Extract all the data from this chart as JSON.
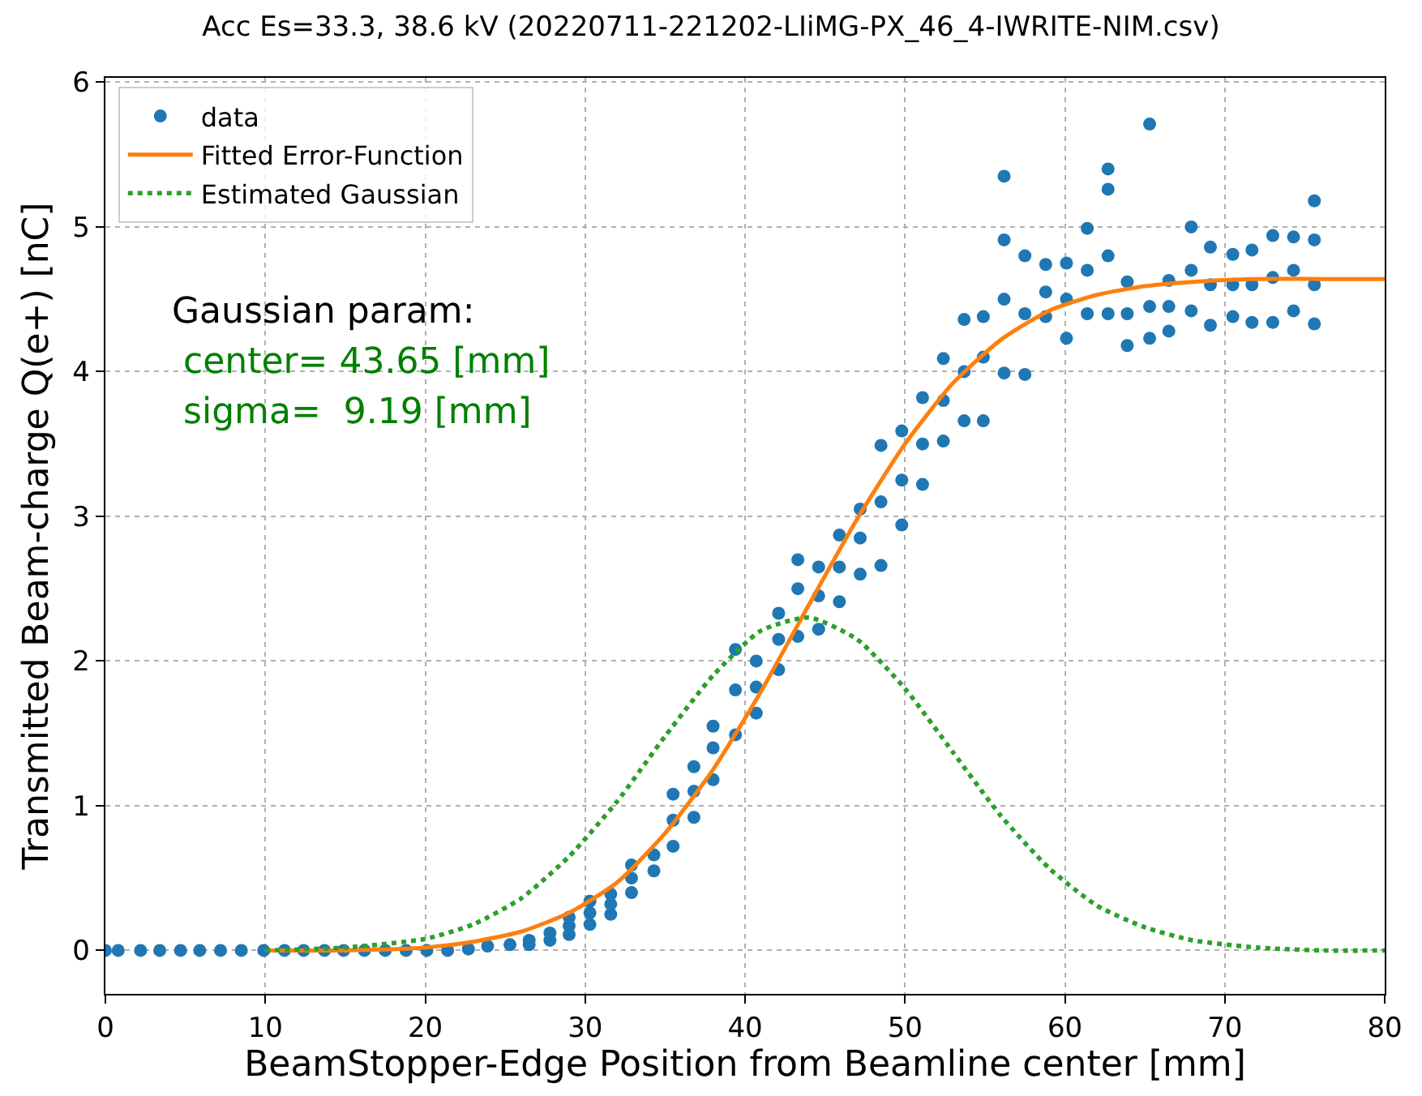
{
  "chart_data": {
    "type": "scatter",
    "title": "Acc Es=33.3, 38.6 kV (20220711-221202-LIiMG-PX_46_4-IWRITE-NIM.csv)",
    "xlabel": "BeamStopper-Edge Position from Beamline center [mm]",
    "ylabel": "Transmitted Beam-charge Q(e+) [nC]",
    "xlim": [
      0,
      80
    ],
    "ylim": [
      -0.3,
      6.03
    ],
    "xticks": [
      0,
      10,
      20,
      30,
      40,
      50,
      60,
      70,
      80
    ],
    "yticks": [
      0,
      1,
      2,
      3,
      4,
      5,
      6
    ],
    "grid": true,
    "legend": "top left",
    "annotations": [
      "Gaussian param:",
      " center= 43.65 [mm]",
      " sigma=  9.19 [mm]"
    ],
    "series": [
      {
        "name": "data",
        "marker": "circle",
        "color": "#1f77b4",
        "x": [
          0,
          0.8,
          2.2,
          3.4,
          4.7,
          5.9,
          7.2,
          8.5,
          9.9,
          11.2,
          12.4,
          13.7,
          14.9,
          16.2,
          17.5,
          18.8,
          20.1,
          21.4,
          22.7,
          23.9,
          25.3,
          26.5,
          26.5,
          27.8,
          27.8,
          29.0,
          29.0,
          29.0,
          30.3,
          30.3,
          30.3,
          31.6,
          31.6,
          31.6,
          32.9,
          32.9,
          32.9,
          34.3,
          34.3,
          35.5,
          35.5,
          35.5,
          36.8,
          36.8,
          36.8,
          38.0,
          38.0,
          38.0,
          39.4,
          39.4,
          39.4,
          40.7,
          40.7,
          40.7,
          42.1,
          42.1,
          42.1,
          43.3,
          43.3,
          43.3,
          44.6,
          44.6,
          44.6,
          45.9,
          45.9,
          45.9,
          47.2,
          47.2,
          47.2,
          48.5,
          48.5,
          48.5,
          49.8,
          49.8,
          49.8,
          51.1,
          51.1,
          51.1,
          52.4,
          52.4,
          52.4,
          53.7,
          53.7,
          53.7,
          54.9,
          54.9,
          54.9,
          56.2,
          56.2,
          56.2,
          56.2,
          57.5,
          57.5,
          57.5,
          58.8,
          58.8,
          58.8,
          60.1,
          60.1,
          60.1,
          61.4,
          61.4,
          61.4,
          62.7,
          62.7,
          62.7,
          62.7,
          63.9,
          63.9,
          63.9,
          65.3,
          65.3,
          65.3,
          66.5,
          66.5,
          66.5,
          67.9,
          67.9,
          67.9,
          69.1,
          69.1,
          69.1,
          70.5,
          70.5,
          70.5,
          71.7,
          71.7,
          71.7,
          73.0,
          73.0,
          73.0,
          74.3,
          74.3,
          74.3,
          75.6,
          75.6,
          75.6,
          75.6
        ],
        "values": [
          0,
          0,
          0,
          0,
          0,
          0,
          0,
          0,
          0,
          0,
          0,
          0,
          0,
          0,
          0,
          0,
          0,
          0,
          0.01,
          0.03,
          0.04,
          0.04,
          0.07,
          0.07,
          0.12,
          0.11,
          0.17,
          0.23,
          0.18,
          0.26,
          0.34,
          0.25,
          0.32,
          0.39,
          0.4,
          0.5,
          0.59,
          0.55,
          0.66,
          0.72,
          0.9,
          1.08,
          0.92,
          1.1,
          1.27,
          1.18,
          1.4,
          1.55,
          1.49,
          1.8,
          2.08,
          1.64,
          1.82,
          2.0,
          1.94,
          2.15,
          2.33,
          2.17,
          2.5,
          2.7,
          2.22,
          2.45,
          2.65,
          2.41,
          2.65,
          2.87,
          2.6,
          2.85,
          3.05,
          2.66,
          3.1,
          3.49,
          2.94,
          3.25,
          3.59,
          3.22,
          3.5,
          3.82,
          3.52,
          3.8,
          4.09,
          3.66,
          4.0,
          4.36,
          3.66,
          4.1,
          4.38,
          3.99,
          4.5,
          4.91,
          5.35,
          3.98,
          4.4,
          4.8,
          4.38,
          4.55,
          4.74,
          4.23,
          4.5,
          4.75,
          4.4,
          4.7,
          4.99,
          4.4,
          4.8,
          5.26,
          5.4,
          4.18,
          4.4,
          4.62,
          4.23,
          4.45,
          5.71,
          4.28,
          4.45,
          4.63,
          4.42,
          4.7,
          5.0,
          4.32,
          4.6,
          4.86,
          4.38,
          4.6,
          4.81,
          4.34,
          4.6,
          4.84,
          4.34,
          4.65,
          4.94,
          4.42,
          4.7,
          4.93,
          4.33,
          4.6,
          4.91,
          5.18
        ]
      },
      {
        "name": "Fitted Error-Function",
        "type": "line",
        "line_style": "solid",
        "color": "#ff7f0e",
        "x": [
          10,
          15,
          20,
          23,
          26,
          29,
          32,
          35,
          38,
          41,
          44,
          47,
          50,
          53,
          56,
          59,
          62,
          65,
          68,
          72,
          76,
          80
        ],
        "values": [
          0,
          0,
          0.02,
          0.06,
          0.13,
          0.26,
          0.47,
          0.81,
          1.25,
          1.79,
          2.39,
          2.98,
          3.5,
          3.92,
          4.22,
          4.42,
          4.53,
          4.59,
          4.62,
          4.64,
          4.64,
          4.64
        ]
      },
      {
        "name": "Estimated Gaussian",
        "type": "line",
        "line_style": "dotted",
        "color": "#2ca02c",
        "x": [
          10,
          15,
          20,
          23,
          26,
          29,
          32,
          35,
          38,
          41,
          44,
          47,
          50,
          53,
          56,
          59,
          62,
          65,
          68,
          72,
          76,
          80
        ],
        "values": [
          0,
          0.02,
          0.08,
          0.18,
          0.36,
          0.65,
          1.03,
          1.48,
          1.9,
          2.21,
          2.3,
          2.15,
          1.81,
          1.37,
          0.93,
          0.57,
          0.31,
          0.16,
          0.07,
          0.02,
          0,
          0
        ]
      }
    ]
  }
}
